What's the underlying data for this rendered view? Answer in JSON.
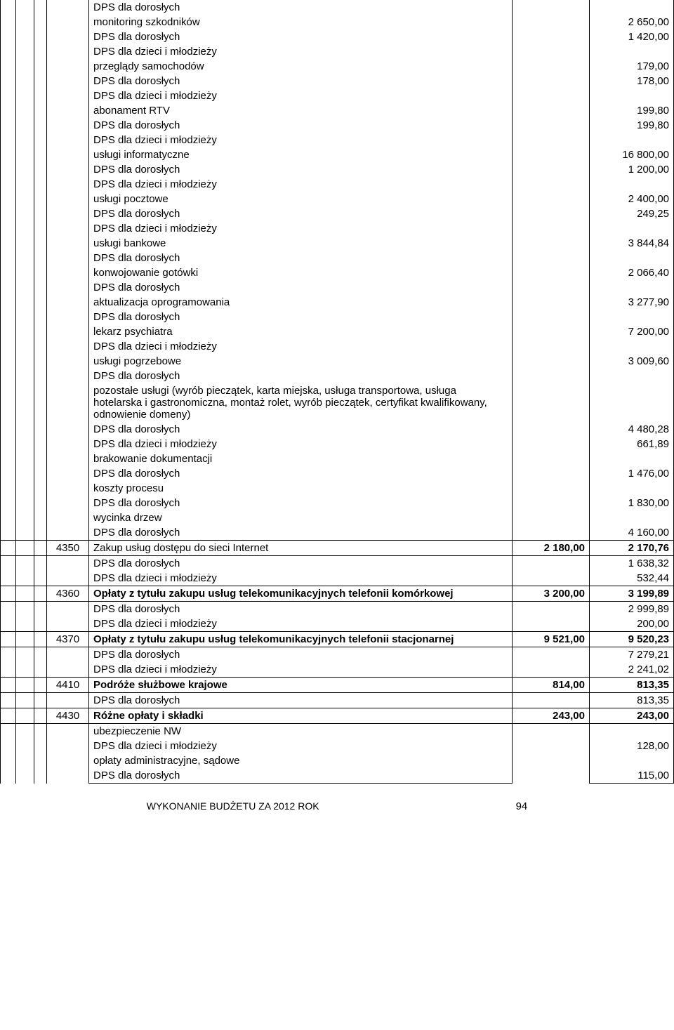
{
  "detail": {
    "r1": {
      "label": "DPS dla dorosłych"
    },
    "r2": {
      "label": "monitoring szkodników",
      "val": "2 650,00"
    },
    "r3": {
      "label": "DPS dla dorosłych",
      "val": "1 420,00"
    },
    "r4": {
      "label": "DPS dla dzieci i młodzieży"
    },
    "r5": {
      "label": "przeglądy samochodów",
      "val": "179,00"
    },
    "r6": {
      "label": "DPS dla dorosłych",
      "val": "178,00"
    },
    "r7": {
      "label": "DPS dla dzieci i młodzieży"
    },
    "r8": {
      "label": "abonament RTV",
      "val": "199,80"
    },
    "r9": {
      "label": "DPS dla dorosłych",
      "val": "199,80"
    },
    "r10": {
      "label": "DPS dla dzieci i młodzieży"
    },
    "r11": {
      "label": "usługi informatyczne",
      "val": "16 800,00"
    },
    "r12": {
      "label": "DPS dla dorosłych",
      "val": "1 200,00"
    },
    "r13": {
      "label": "DPS dla dzieci i młodzieży"
    },
    "r14": {
      "label": "usługi pocztowe",
      "val": "2 400,00"
    },
    "r15": {
      "label": "DPS dla dorosłych",
      "val": "249,25"
    },
    "r16": {
      "label": "DPS dla dzieci i młodzieży"
    },
    "r17": {
      "label": "usługi bankowe",
      "val": "3 844,84"
    },
    "r18": {
      "label": "DPS dla dorosłych"
    },
    "r19": {
      "label": "konwojowanie gotówki",
      "val": "2 066,40"
    },
    "r20": {
      "label": "DPS dla dorosłych"
    },
    "r21": {
      "label": "aktualizacja oprogramowania",
      "val": "3 277,90"
    },
    "r22": {
      "label": "DPS dla dorosłych"
    },
    "r23": {
      "label": "lekarz psychiatra",
      "val": "7 200,00"
    },
    "r24": {
      "label": "DPS dla dzieci i młodzieży"
    },
    "r25": {
      "label": "usługi pogrzebowe",
      "val": "3 009,60"
    },
    "r26": {
      "label": "DPS dla dorosłych"
    },
    "r27": {
      "label": "pozostałe usługi (wyrób pieczątek, karta miejska, usługa transportowa, usługa hotelarska i gastronomiczna, montaż rolet, wyrób pieczątek, certyfikat kwalifikowany, odnowienie domeny)"
    },
    "r28": {
      "label": "DPS dla dorosłych",
      "val": "4 480,28"
    },
    "r29": {
      "label": "DPS dla dzieci i młodzieży",
      "val": "661,89"
    },
    "r30": {
      "label": "brakowanie dokumentacji"
    },
    "r31": {
      "label": "DPS dla dorosłych",
      "val": "1 476,00"
    },
    "r32": {
      "label": "koszty procesu"
    },
    "r33": {
      "label": "DPS dla dorosłych",
      "val": "1 830,00"
    },
    "r34": {
      "label": "wycinka drzew"
    },
    "r35": {
      "label": "DPS dla dorosłych",
      "val": "4 160,00"
    }
  },
  "sections": {
    "s4350": {
      "code": "4350",
      "label": "Zakup usług dostępu do sieci Internet",
      "c1": "2 180,00",
      "c2": "2 170,76"
    },
    "s4350a": {
      "label": "DPS dla dorosłych",
      "val": "1 638,32"
    },
    "s4350b": {
      "label": "DPS dla dzieci i młodzieży",
      "val": "532,44"
    },
    "s4360": {
      "code": "4360",
      "label": "Opłaty z tytułu zakupu usług telekomunikacyjnych telefonii komórkowej",
      "c1": "3 200,00",
      "c2": "3 199,89"
    },
    "s4360a": {
      "label": "DPS dla dorosłych",
      "val": "2 999,89"
    },
    "s4360b": {
      "label": "DPS dla dzieci i młodzieży",
      "val": "200,00"
    },
    "s4370": {
      "code": "4370",
      "label": "Opłaty z tytułu zakupu usług telekomunikacyjnych telefonii stacjonarnej",
      "c1": "9 521,00",
      "c2": "9 520,23"
    },
    "s4370a": {
      "label": "DPS dla dorosłych",
      "val": "7 279,21"
    },
    "s4370b": {
      "label": "DPS dla dzieci i młodzieży",
      "val": "2 241,02"
    },
    "s4410": {
      "code": "4410",
      "label": "Podróże służbowe krajowe",
      "c1": "814,00",
      "c2": "813,35"
    },
    "s4410a": {
      "label": "DPS dla dorosłych",
      "val": "813,35"
    },
    "s4430": {
      "code": "4430",
      "label": "Różne opłaty i składki",
      "c1": "243,00",
      "c2": "243,00"
    },
    "s4430a": {
      "label": "ubezpieczenie NW"
    },
    "s4430b": {
      "label": "DPS dla dzieci i młodzieży",
      "val": "128,00"
    },
    "s4430c": {
      "label": "opłaty administracyjne, sądowe"
    },
    "s4430d": {
      "label": "DPS dla dorosłych",
      "val": "115,00"
    }
  },
  "footer": {
    "text": "WYKONANIE BUDŻETU ZA  2012 ROK",
    "page": "94"
  }
}
